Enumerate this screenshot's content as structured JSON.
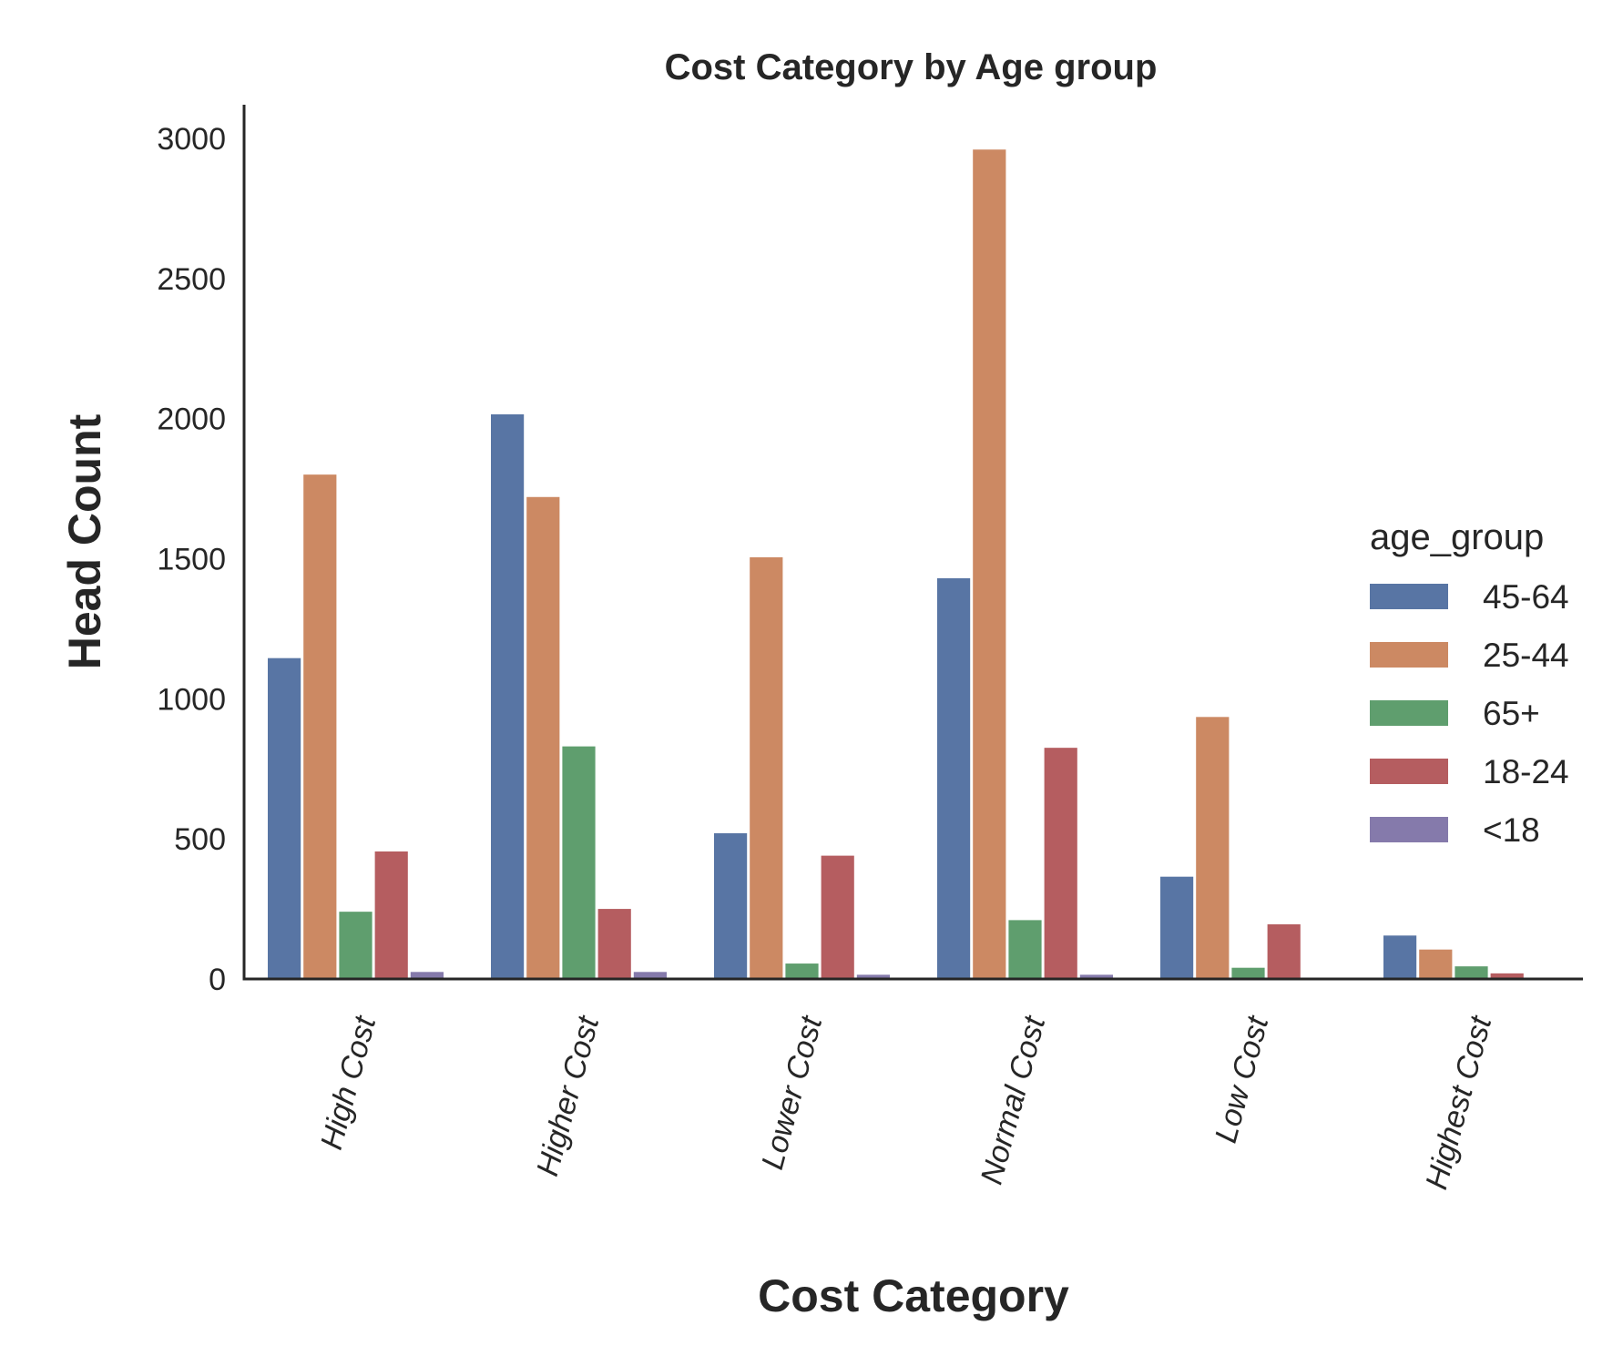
{
  "chart_data": {
    "type": "bar",
    "title": "Cost Category by Age group",
    "xlabel": "Cost Category",
    "ylabel": "Head Count",
    "categories": [
      "High Cost",
      "Higher Cost",
      "Lower Cost",
      "Normal Cost",
      "Low Cost",
      "Highest Cost"
    ],
    "yticks": [
      0,
      500,
      1000,
      1500,
      2000,
      2500,
      3000
    ],
    "ylim": [
      0,
      3120
    ],
    "grid": false,
    "legend": {
      "title": "age_group",
      "position": "right"
    },
    "series": [
      {
        "name": "45-64",
        "color": "#5875a4",
        "values": [
          1145,
          2015,
          520,
          1430,
          365,
          155
        ]
      },
      {
        "name": "25-44",
        "color": "#cc8963",
        "values": [
          1800,
          1720,
          1505,
          2960,
          935,
          105
        ]
      },
      {
        "name": "65+",
        "color": "#5f9e6e",
        "values": [
          240,
          830,
          55,
          210,
          40,
          45
        ]
      },
      {
        "name": "18-24",
        "color": "#b55d60",
        "values": [
          455,
          250,
          440,
          825,
          195,
          20
        ]
      },
      {
        "name": "<18",
        "color": "#857aab",
        "values": [
          25,
          25,
          15,
          15,
          0,
          0
        ]
      }
    ]
  }
}
